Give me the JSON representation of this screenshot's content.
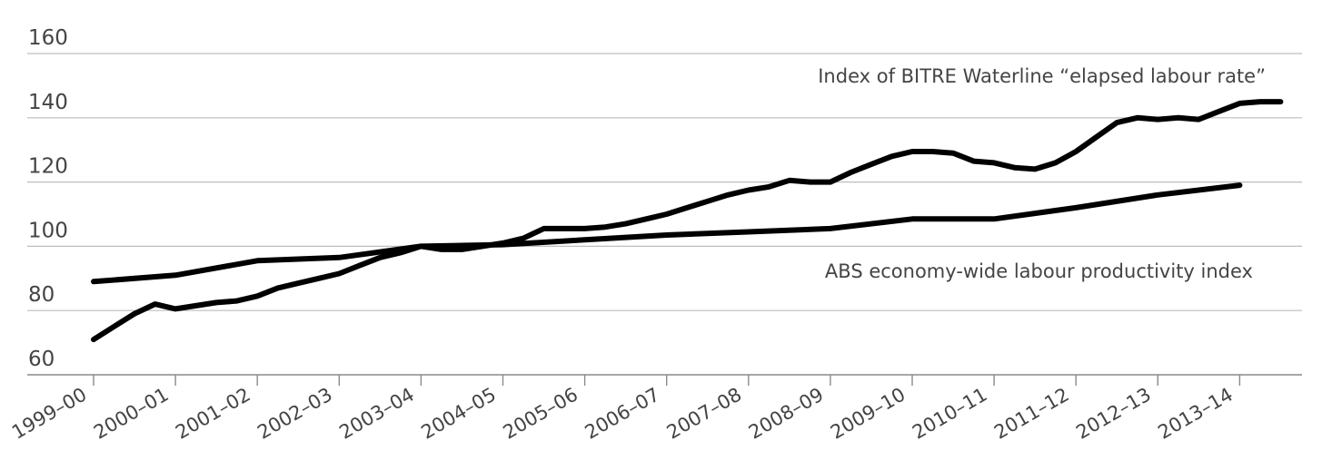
{
  "chart_data": {
    "type": "line",
    "title": "",
    "xlabel": "",
    "ylabel": "",
    "categories": [
      "1999–00",
      "2000–01",
      "2001–02",
      "2002–03",
      "2003–04",
      "2004–05",
      "2005–06",
      "2006–07",
      "2007–08",
      "2008–09",
      "2009–10",
      "2010–11",
      "2011–12",
      "2012–13",
      "2013–14"
    ],
    "ylim": [
      60,
      160
    ],
    "yticks": [
      60,
      80,
      100,
      120,
      140,
      160
    ],
    "grid": true,
    "colors": {
      "series": "#000000",
      "grid": "#bdbdbd",
      "text": "#444444"
    },
    "series": [
      {
        "name": "Index of BITRE Waterline “elapsed labour rate”",
        "x": [
          0,
          0.25,
          0.5,
          0.75,
          1,
          1.25,
          1.5,
          1.75,
          2,
          2.25,
          2.5,
          2.75,
          3,
          3.25,
          3.5,
          3.75,
          4,
          4.25,
          4.5,
          4.75,
          5,
          5.25,
          5.5,
          5.75,
          6,
          6.25,
          6.5,
          6.75,
          7,
          7.25,
          7.5,
          7.75,
          8,
          8.25,
          8.5,
          8.75,
          9,
          9.25,
          9.5,
          9.75,
          10,
          10.25,
          10.5,
          10.75,
          11,
          11.25,
          11.5,
          11.75,
          12,
          12.25,
          12.5,
          12.75,
          13,
          13.25,
          13.5,
          13.75,
          14,
          14.25,
          14.5
        ],
        "values": [
          71,
          75,
          79,
          82,
          80.5,
          81.5,
          82.5,
          83,
          84.5,
          87,
          88.5,
          90,
          91.5,
          94,
          96.5,
          98,
          100,
          99,
          99,
          100,
          101,
          102.5,
          105.5,
          105.5,
          105.5,
          106,
          107,
          108.5,
          110,
          112,
          114,
          116,
          117.5,
          118.5,
          120.5,
          120,
          120,
          123,
          125.5,
          128,
          129.5,
          129.5,
          129,
          126.5,
          126,
          124.5,
          124,
          126,
          129.5,
          134,
          138.5,
          140,
          139.5,
          140,
          139.5,
          142,
          144.5,
          145,
          145
        ]
      },
      {
        "name": "ABS economy-wide labour productivity index",
        "x": [
          0,
          1,
          2,
          3,
          4,
          5,
          6,
          7,
          8,
          9,
          10,
          11,
          12,
          13,
          14
        ],
        "values": [
          89,
          91,
          95.5,
          96.5,
          100,
          100.5,
          102,
          103.5,
          104.5,
          105.5,
          108.5,
          108.5,
          112,
          116,
          119
        ]
      }
    ]
  }
}
